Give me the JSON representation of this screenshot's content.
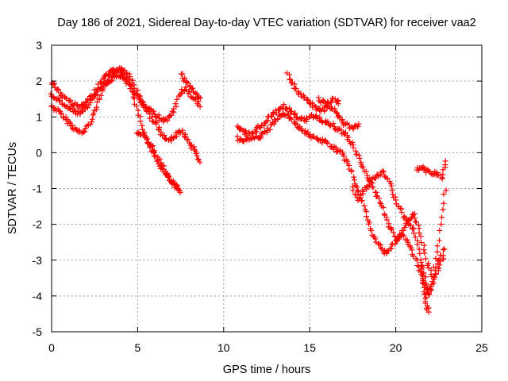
{
  "chart_data": {
    "type": "scatter",
    "title": "Day 186 of 2021, Sidereal Day-to-day VTEC variation (SDTVAR) for receiver vaa2",
    "xlabel": "GPS time / hours",
    "ylabel": "SDTVAR / TECUs",
    "xlim": [
      0,
      25
    ],
    "ylim": [
      -5,
      3
    ],
    "xticks": [
      "0",
      "5",
      "10",
      "15",
      "20",
      "25"
    ],
    "yticks": [
      "-5",
      "-4",
      "-3",
      "-2",
      "-1",
      "0",
      "1",
      "2",
      "3"
    ],
    "grid": true,
    "marker": "plus",
    "color": "#ff0000",
    "series": [
      {
        "x": [
          0.0,
          0.3,
          0.6,
          0.9,
          1.2,
          1.5,
          1.8,
          2.1,
          2.4,
          2.7,
          3.0,
          3.3,
          3.6,
          3.9,
          4.2,
          4.5,
          4.8,
          5.1,
          5.4,
          5.7,
          6.0,
          6.3,
          6.6,
          6.9,
          7.2,
          7.5
        ],
        "y": [
          1.3,
          1.2,
          1.05,
          0.9,
          0.75,
          0.6,
          0.55,
          0.75,
          1.0,
          1.4,
          1.8,
          2.05,
          2.2,
          2.25,
          2.2,
          2.0,
          1.5,
          1.0,
          0.5,
          0.2,
          -0.1,
          -0.35,
          -0.6,
          -0.75,
          -0.95,
          -1.1
        ]
      },
      {
        "x": [
          0.0,
          0.3,
          0.6,
          0.9,
          1.2,
          1.5,
          1.8,
          2.1,
          2.4,
          2.7,
          3.0,
          3.3,
          3.6,
          3.9,
          4.2,
          4.5,
          4.8,
          5.1,
          5.4,
          5.7,
          6.0,
          6.3,
          6.6,
          6.9,
          7.2,
          7.5,
          7.8,
          8.1,
          8.4,
          8.6
        ],
        "y": [
          2.0,
          1.8,
          1.6,
          1.5,
          1.4,
          1.3,
          1.3,
          1.45,
          1.6,
          1.85,
          2.05,
          2.2,
          2.3,
          2.35,
          2.3,
          2.15,
          1.9,
          1.55,
          1.3,
          1.05,
          0.85,
          0.6,
          0.4,
          0.35,
          0.5,
          0.6,
          0.45,
          0.2,
          0.0,
          -0.3
        ]
      },
      {
        "x": [
          0.0,
          0.3,
          0.6,
          0.9,
          1.2,
          1.5,
          1.8,
          2.1,
          2.4,
          2.7,
          3.0,
          3.3,
          3.6,
          3.9,
          4.2,
          4.5,
          4.8,
          5.1,
          5.4,
          5.7,
          6.0,
          6.3,
          6.6,
          6.9,
          7.2,
          7.5,
          7.8,
          8.1,
          8.4,
          8.6
        ],
        "y": [
          1.6,
          1.5,
          1.4,
          1.3,
          1.2,
          1.1,
          1.15,
          1.3,
          1.5,
          1.7,
          1.85,
          2.0,
          2.1,
          2.15,
          2.05,
          1.9,
          1.7,
          1.45,
          1.3,
          1.2,
          1.1,
          0.95,
          0.9,
          1.0,
          1.3,
          1.7,
          1.8,
          1.6,
          1.5,
          1.3
        ]
      },
      {
        "x": [
          5.0,
          5.3,
          5.6,
          5.9,
          6.2,
          6.5,
          6.8,
          7.1,
          7.4
        ],
        "y": [
          0.6,
          0.45,
          0.3,
          0.1,
          -0.15,
          -0.4,
          -0.7,
          -0.9,
          -1.0
        ]
      },
      {
        "x": [
          7.5,
          7.8,
          8.1,
          8.4,
          8.6
        ],
        "y": [
          2.2,
          2.0,
          1.8,
          1.6,
          1.5
        ]
      },
      {
        "x": [
          10.8,
          11.1,
          11.4,
          11.7,
          12.0,
          12.3,
          12.6,
          12.9,
          13.2,
          13.5,
          13.8,
          14.1,
          14.4,
          14.7,
          15.0,
          15.3,
          15.6,
          15.9,
          16.2,
          16.5,
          16.8,
          17.1,
          17.4,
          17.7,
          18.0,
          18.3,
          18.6,
          18.9,
          19.2,
          19.5,
          19.8,
          20.1,
          20.4,
          20.7,
          21.0,
          21.3,
          21.6,
          21.9,
          22.2,
          22.5,
          22.8
        ],
        "y": [
          0.4,
          0.3,
          0.35,
          0.45,
          0.4,
          0.5,
          0.65,
          0.85,
          1.0,
          1.1,
          1.0,
          0.85,
          0.7,
          0.6,
          0.5,
          0.4,
          0.35,
          0.3,
          0.2,
          0.1,
          0.0,
          -0.2,
          -0.5,
          -0.9,
          -1.3,
          -1.8,
          -2.2,
          -2.5,
          -2.7,
          -2.8,
          -2.6,
          -2.4,
          -2.3,
          -2.5,
          -2.8,
          -3.2,
          -3.6,
          -3.9,
          -3.6,
          -3.2,
          -2.9
        ]
      },
      {
        "x": [
          10.8,
          11.1,
          11.4,
          11.7,
          12.0,
          12.3,
          12.6,
          12.9,
          13.2,
          13.5,
          13.8,
          14.1,
          14.4,
          14.7,
          15.0,
          15.3,
          15.6,
          15.9,
          16.2,
          16.5,
          16.8,
          17.1,
          17.4,
          17.7,
          18.0,
          18.3,
          18.6,
          18.9,
          19.2,
          19.5,
          19.8,
          20.1,
          20.4,
          20.7,
          21.0,
          21.3,
          21.6,
          21.9,
          22.2,
          22.5,
          22.8
        ],
        "y": [
          0.7,
          0.6,
          0.5,
          0.55,
          0.7,
          0.8,
          0.95,
          1.1,
          1.2,
          1.3,
          1.2,
          1.05,
          0.95,
          0.9,
          1.0,
          1.05,
          0.95,
          0.85,
          0.8,
          0.7,
          0.6,
          0.5,
          0.3,
          0.0,
          -0.3,
          -0.6,
          -0.9,
          -1.2,
          -1.5,
          -1.9,
          -2.2,
          -2.5,
          -2.2,
          -1.9,
          -1.7,
          -2.0,
          -2.6,
          -3.2,
          -3.5,
          -3.0,
          -2.7
        ]
      },
      {
        "x": [
          13.7,
          14.0,
          14.3,
          14.6,
          14.9,
          15.2,
          15.5,
          15.8,
          16.1,
          16.4,
          16.7,
          17.0,
          17.3,
          17.6,
          17.9
        ],
        "y": [
          2.2,
          1.9,
          1.7,
          1.55,
          1.45,
          1.3,
          1.2,
          1.2,
          1.3,
          1.2,
          1.0,
          0.8,
          0.75,
          0.7,
          0.75
        ]
      },
      {
        "x": [
          15.5,
          15.8,
          16.1,
          16.4,
          16.7
        ],
        "y": [
          1.5,
          1.4,
          1.35,
          1.5,
          1.4
        ]
      },
      {
        "x": [
          17.5,
          17.8,
          18.1,
          18.4,
          18.7,
          19.0,
          19.3,
          19.6,
          19.9,
          20.2,
          20.5,
          20.8,
          21.1,
          21.4,
          21.7,
          22.0,
          22.3,
          22.6,
          22.9
        ],
        "y": [
          -1.0,
          -1.3,
          -1.1,
          -0.9,
          -0.7,
          -0.6,
          -0.55,
          -0.8,
          -1.2,
          -1.5,
          -1.8,
          -2.0,
          -2.2,
          -2.8,
          -3.5,
          -4.0,
          -3.0,
          -2.0,
          -1.0
        ]
      },
      {
        "x": [
          21.2,
          21.5,
          21.8,
          22.1,
          22.4,
          22.7,
          22.9
        ],
        "y": [
          -0.5,
          -0.4,
          -0.5,
          -0.55,
          -0.6,
          -0.7,
          -0.2
        ]
      },
      {
        "x": [
          21.5,
          21.6,
          21.7,
          21.8,
          21.9
        ],
        "y": [
          -3.2,
          -3.6,
          -4.0,
          -4.3,
          -4.4
        ]
      }
    ]
  }
}
